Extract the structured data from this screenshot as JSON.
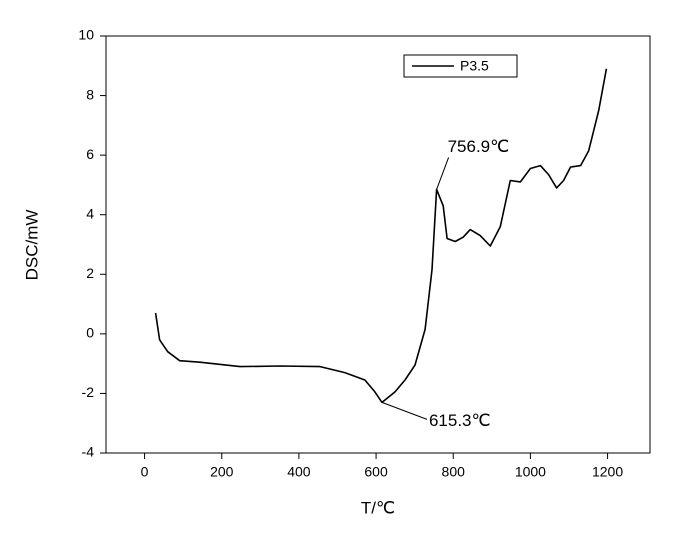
{
  "chart_data": {
    "type": "line",
    "xlabel": "T/℃",
    "ylabel": "DSC/mW",
    "x": [
      28.6,
      39,
      60,
      91,
      143,
      247,
      351,
      455,
      519,
      571,
      597,
      615.3,
      649,
      675,
      701,
      727,
      745,
      756.9,
      774,
      784,
      805,
      826,
      844,
      870,
      896,
      922,
      948,
      974,
      1000,
      1026,
      1047,
      1068,
      1086,
      1104,
      1130,
      1151,
      1177,
      1197
    ],
    "series": [
      {
        "name": "P3.5",
        "color": "#000000",
        "values": [
          0.7,
          -0.2,
          -0.6,
          -0.9,
          -0.95,
          -1.1,
          -1.08,
          -1.1,
          -1.3,
          -1.55,
          -1.95,
          -2.3,
          -1.95,
          -1.55,
          -1.05,
          0.15,
          2.15,
          4.85,
          4.3,
          3.2,
          3.1,
          3.25,
          3.5,
          3.3,
          2.95,
          3.6,
          5.15,
          5.1,
          5.55,
          5.65,
          5.35,
          4.9,
          5.15,
          5.6,
          5.65,
          6.15,
          7.5,
          8.9
        ]
      }
    ],
    "annotations": [
      {
        "text": "756.9℃"
      },
      {
        "text": "615.3℃"
      }
    ],
    "xlim": [
      -100,
      1310
    ],
    "xticks": [
      0,
      200,
      400,
      600,
      800,
      1000,
      1200
    ],
    "ylim": [
      -4,
      10
    ],
    "yticks": [
      -4,
      -2,
      0,
      2,
      4,
      6,
      8,
      10
    ],
    "grid": false,
    "legend": "top-right"
  }
}
